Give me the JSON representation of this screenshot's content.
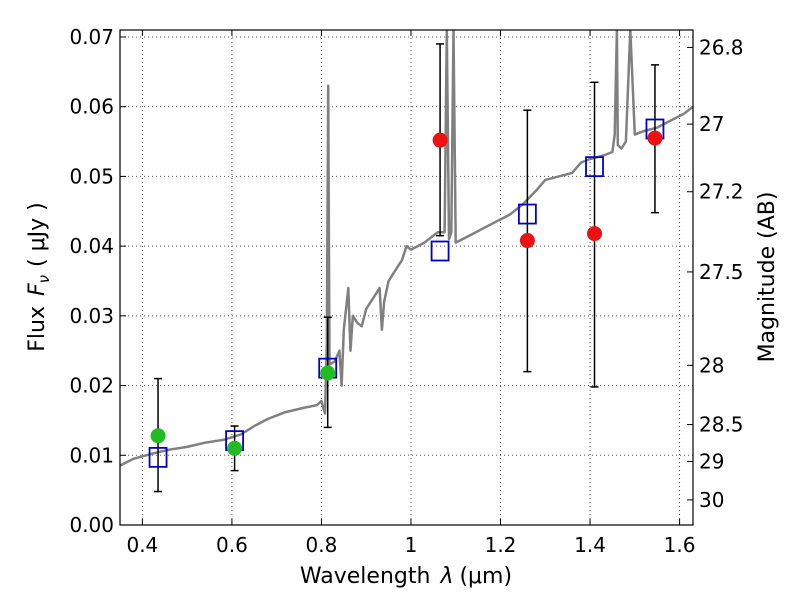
{
  "chart_data": {
    "type": "scatter",
    "title": "",
    "xlabel_text": "Wavelength",
    "xlabel_symbol": "λ",
    "xlabel_unit": "(μm)",
    "ylabel_text": "Flux",
    "ylabel_symbol": "F",
    "ylabel_subscript": "ν",
    "ylabel_unit": "( μJy )",
    "ylabel_right": "Magnitude (AB)",
    "xlim": [
      0.35,
      1.63
    ],
    "ylim": [
      0.0,
      0.071
    ],
    "x_ticks": [
      0.4,
      0.6,
      0.8,
      1.0,
      1.2,
      1.4,
      1.6
    ],
    "x_tick_labels": [
      "0.4",
      "0.6",
      "0.8",
      "1",
      "1.2",
      "1.4",
      "1.6"
    ],
    "y_ticks": [
      0.0,
      0.01,
      0.02,
      0.03,
      0.04,
      0.05,
      0.06,
      0.07
    ],
    "y_tick_labels": [
      "0.00",
      "0.01",
      "0.02",
      "0.03",
      "0.04",
      "0.05",
      "0.06",
      "0.07"
    ],
    "mag_ticks": [
      {
        "label": "26.8",
        "flux": 0.0685
      },
      {
        "label": "27",
        "flux": 0.0575
      },
      {
        "label": "27.2",
        "flux": 0.0478
      },
      {
        "label": "27.5",
        "flux": 0.0363
      },
      {
        "label": "28",
        "flux": 0.0229
      },
      {
        "label": "28.5",
        "flux": 0.0144
      },
      {
        "label": "29",
        "flux": 0.0091
      },
      {
        "label": "30",
        "flux": 0.0036
      }
    ],
    "grid": true,
    "colors": {
      "model": "#808080",
      "squares": "#0000cc",
      "green": "#22bb22",
      "red": "#ee1111",
      "errorbar": "#000000"
    },
    "model_spectrum": [
      [
        0.35,
        0.0085
      ],
      [
        0.38,
        0.0095
      ],
      [
        0.42,
        0.0102
      ],
      [
        0.46,
        0.0108
      ],
      [
        0.5,
        0.0112
      ],
      [
        0.54,
        0.0118
      ],
      [
        0.58,
        0.0122
      ],
      [
        0.62,
        0.013
      ],
      [
        0.65,
        0.0142
      ],
      [
        0.68,
        0.0152
      ],
      [
        0.72,
        0.0162
      ],
      [
        0.76,
        0.0168
      ],
      [
        0.79,
        0.0172
      ],
      [
        0.8,
        0.0178
      ],
      [
        0.808,
        0.016
      ],
      [
        0.812,
        0.026
      ],
      [
        0.815,
        0.063
      ],
      [
        0.818,
        0.023
      ],
      [
        0.83,
        0.0235
      ],
      [
        0.84,
        0.025
      ],
      [
        0.845,
        0.02
      ],
      [
        0.85,
        0.028
      ],
      [
        0.86,
        0.034
      ],
      [
        0.865,
        0.025
      ],
      [
        0.87,
        0.03
      ],
      [
        0.88,
        0.029
      ],
      [
        0.89,
        0.0285
      ],
      [
        0.9,
        0.031
      ],
      [
        0.92,
        0.033
      ],
      [
        0.93,
        0.034
      ],
      [
        0.935,
        0.028
      ],
      [
        0.94,
        0.032
      ],
      [
        0.95,
        0.035
      ],
      [
        0.97,
        0.037
      ],
      [
        0.98,
        0.038
      ],
      [
        0.99,
        0.04
      ],
      [
        1.0,
        0.0395
      ],
      [
        1.03,
        0.0405
      ],
      [
        1.06,
        0.042
      ],
      [
        1.075,
        0.042
      ],
      [
        1.08,
        0.071
      ],
      [
        1.085,
        0.041
      ],
      [
        1.09,
        0.042
      ],
      [
        1.095,
        0.071
      ],
      [
        1.1,
        0.0405
      ],
      [
        1.13,
        0.0415
      ],
      [
        1.16,
        0.0425
      ],
      [
        1.19,
        0.0435
      ],
      [
        1.22,
        0.0445
      ],
      [
        1.25,
        0.046
      ],
      [
        1.28,
        0.048
      ],
      [
        1.3,
        0.0495
      ],
      [
        1.33,
        0.05
      ],
      [
        1.36,
        0.0505
      ],
      [
        1.38,
        0.052
      ],
      [
        1.4,
        0.0525
      ],
      [
        1.43,
        0.053
      ],
      [
        1.45,
        0.0535
      ],
      [
        1.455,
        0.056
      ],
      [
        1.46,
        0.071
      ],
      [
        1.462,
        0.0545
      ],
      [
        1.47,
        0.054
      ],
      [
        1.48,
        0.055
      ],
      [
        1.49,
        0.071
      ],
      [
        1.5,
        0.056
      ],
      [
        1.52,
        0.0565
      ],
      [
        1.55,
        0.057
      ],
      [
        1.58,
        0.058
      ],
      [
        1.61,
        0.059
      ],
      [
        1.63,
        0.06
      ]
    ],
    "model_points": [
      {
        "x": 0.435,
        "y": 0.0097
      },
      {
        "x": 0.606,
        "y": 0.0121
      },
      {
        "x": 0.814,
        "y": 0.0225
      },
      {
        "x": 1.065,
        "y": 0.0393
      },
      {
        "x": 1.26,
        "y": 0.0446
      },
      {
        "x": 1.41,
        "y": 0.0514
      },
      {
        "x": 1.545,
        "y": 0.0568
      }
    ],
    "observed_green": [
      {
        "x": 0.435,
        "y": 0.0128,
        "yerr_low": 0.0048,
        "yerr_high": 0.021
      },
      {
        "x": 0.606,
        "y": 0.011,
        "yerr_low": 0.0078,
        "yerr_high": 0.0142
      },
      {
        "x": 0.814,
        "y": 0.0218,
        "yerr_low": 0.014,
        "yerr_high": 0.0298
      }
    ],
    "observed_red": [
      {
        "x": 1.065,
        "y": 0.0552,
        "yerr_low": 0.0415,
        "yerr_high": 0.069
      },
      {
        "x": 1.26,
        "y": 0.0408,
        "yerr_low": 0.022,
        "yerr_high": 0.0595
      },
      {
        "x": 1.41,
        "y": 0.0418,
        "yerr_low": 0.0198,
        "yerr_high": 0.0635
      },
      {
        "x": 1.545,
        "y": 0.0555,
        "yerr_low": 0.0448,
        "yerr_high": 0.066
      }
    ]
  }
}
